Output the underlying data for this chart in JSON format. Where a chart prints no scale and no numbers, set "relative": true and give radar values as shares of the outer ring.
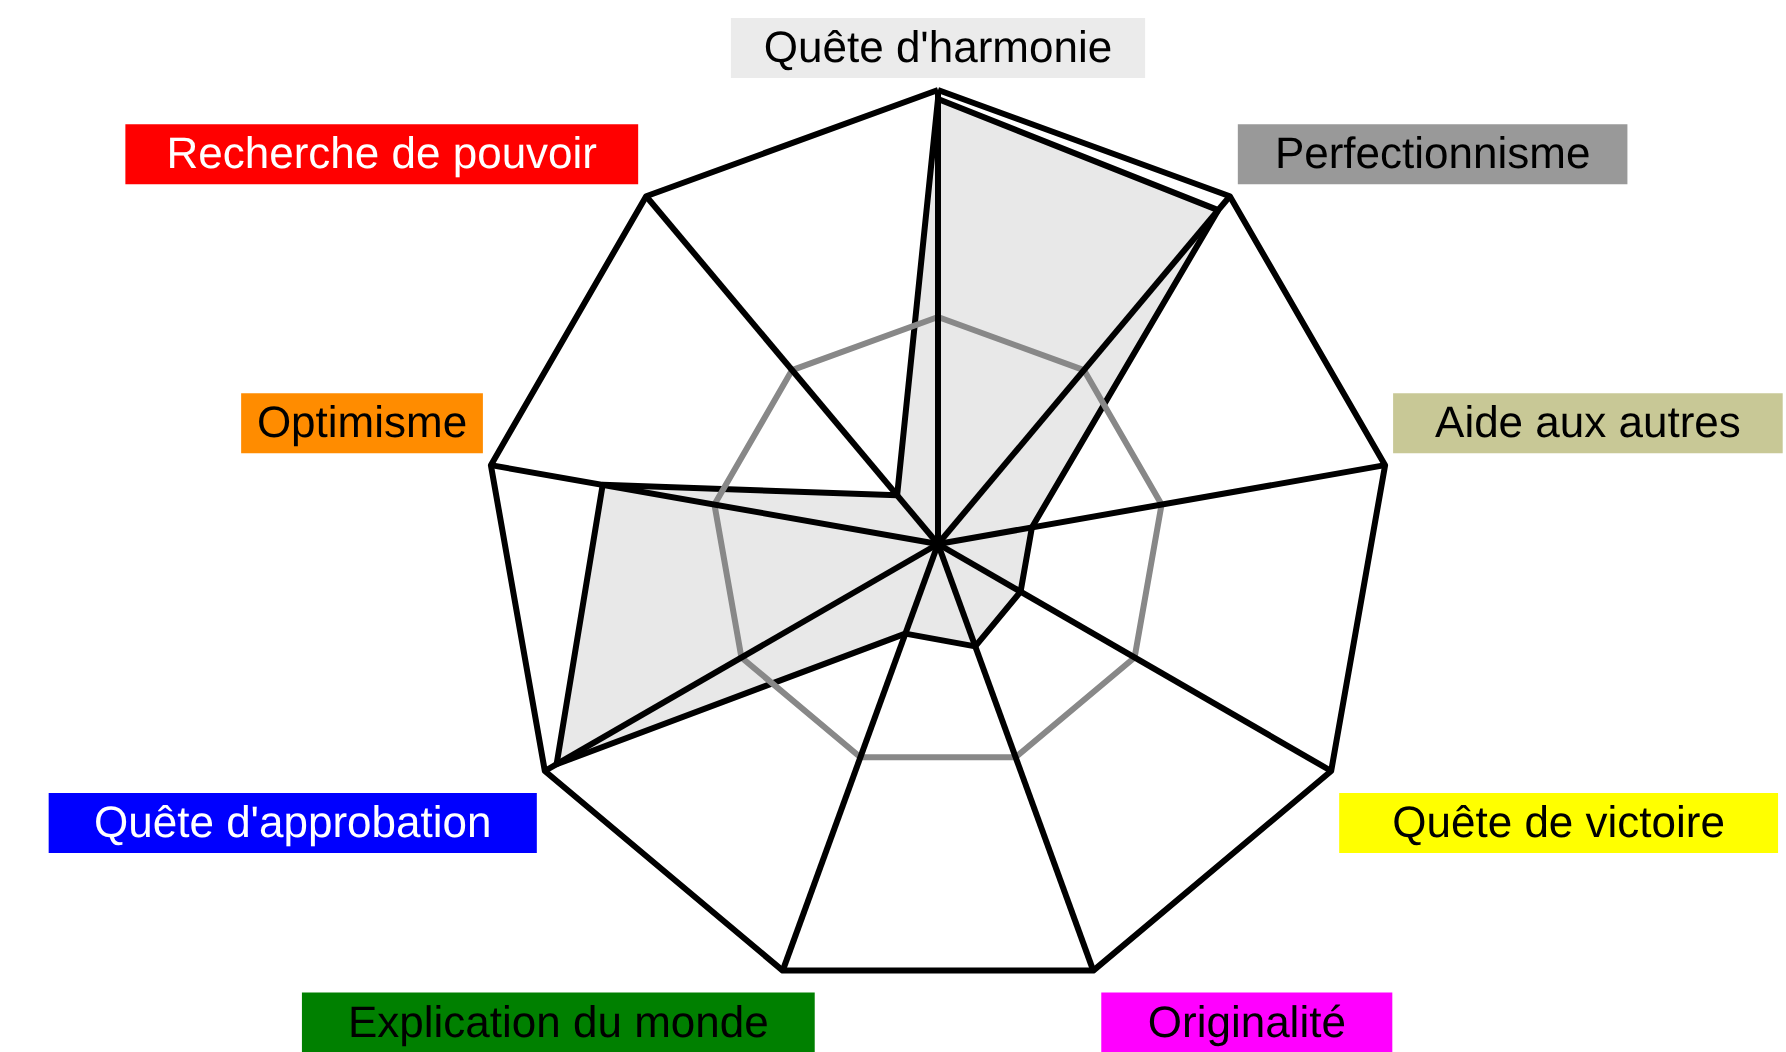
{
  "chart_data": {
    "type": "radar",
    "relative": true,
    "grid": true,
    "categories": [
      "Quête d'harmonie",
      "Perfectionnisme",
      "Aide aux autres",
      "Quête de victoire",
      "Originalité",
      "Explication du monde",
      "Quête d'approbation",
      "Optimisme",
      "Recherche de pouvoir"
    ],
    "colors": [
      "#ebebeb",
      "#999999",
      "#c8c896",
      "#ffff00",
      "#ff00ff",
      "#008000",
      "#0000ff",
      "#ff8c00",
      "#ff0000"
    ],
    "series": [
      {
        "color": "#e8e8e8",
        "values": [
          0.98,
          0.96,
          0.21,
          0.21,
          0.24,
          0.21,
          0.97,
          0.75,
          0.14
        ]
      }
    ]
  }
}
